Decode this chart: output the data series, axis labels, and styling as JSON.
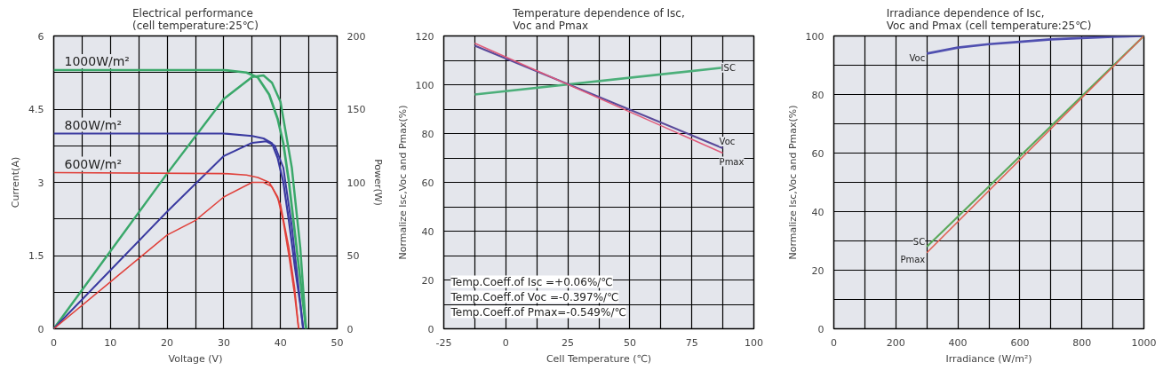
{
  "chart_data": [
    {
      "type": "line",
      "title": "Electrical performance\n(cell temperature:25℃)",
      "xlabel": "Voltage (V)",
      "ylabel": "Current(A)",
      "y2label": "Power(W)",
      "xlim": [
        0,
        50
      ],
      "xticks": [
        0,
        {
          "value": 5,
          "label": null
        },
        10,
        {
          "value": 15,
          "label": null
        },
        20,
        {
          "value": 25,
          "label": null
        },
        30,
        {
          "value": 35,
          "label": null
        },
        40,
        {
          "value": 45,
          "label": null
        },
        50
      ],
      "ylim": [
        0,
        6
      ],
      "yticks": [
        0,
        {
          "value": 0.75,
          "label": null
        },
        {
          "value": 1.5,
          "label": "1.5"
        },
        {
          "value": 2.25,
          "label": null
        },
        3,
        {
          "value": 3.75,
          "label": null
        },
        {
          "value": 4.5,
          "label": "4.5"
        },
        {
          "value": 5.25,
          "label": null
        },
        6
      ],
      "y2lim": [
        0,
        200
      ],
      "y2ticks": [
        0,
        50,
        100,
        150,
        200
      ],
      "grid": true,
      "series": [
        {
          "name": "1000W/m²",
          "color": "#3aa86a",
          "x": [
            0,
            30,
            34,
            36,
            38,
            39.5,
            40.5,
            41.5,
            42.5,
            43.5,
            44.5
          ],
          "values": [
            5.3,
            5.3,
            5.25,
            5.15,
            4.8,
            4.3,
            3.8,
            3.0,
            2.0,
            1.0,
            0
          ]
        },
        {
          "color": "#3aa86a",
          "axis": "y2",
          "x": [
            0,
            10,
            20,
            30,
            35,
            37,
            38.5,
            40,
            42,
            43.5,
            44.5
          ],
          "values": [
            0,
            53,
            106,
            157,
            172,
            173,
            168,
            155,
            110,
            55,
            0
          ]
        },
        {
          "name": "800W/m²",
          "color": "#3a3aa0",
          "x": [
            0,
            30,
            35,
            37,
            38.5,
            39.5,
            40.5,
            41.5,
            42.5,
            43.5,
            44
          ],
          "values": [
            4.0,
            4.0,
            3.95,
            3.9,
            3.8,
            3.5,
            3.0,
            2.2,
            1.3,
            0.5,
            0
          ]
        },
        {
          "color": "#3a3aa0",
          "axis": "y2",
          "x": [
            0,
            10,
            20,
            30,
            35,
            37.5,
            39,
            40.5,
            42,
            43,
            44
          ],
          "values": [
            0,
            40,
            80,
            118,
            127,
            128,
            125,
            110,
            70,
            35,
            0
          ]
        },
        {
          "name": "600W/m²",
          "color": "#e0403a",
          "x": [
            0,
            30,
            34,
            36,
            38,
            39.5,
            40.5,
            41.5,
            42.5,
            43.2
          ],
          "values": [
            3.2,
            3.18,
            3.15,
            3.1,
            3.0,
            2.7,
            2.2,
            1.5,
            0.7,
            0
          ]
        },
        {
          "color": "#e0403a",
          "axis": "y2",
          "x": [
            0,
            10,
            20,
            25,
            30,
            35,
            37,
            38.5,
            40,
            41.5,
            42.5,
            43.2
          ],
          "values": [
            0,
            32,
            64,
            74,
            90,
            100,
            100,
            97,
            85,
            55,
            28,
            0
          ]
        }
      ]
    },
    {
      "type": "line",
      "title": "Temperature dependence of Isc,\nVoc and Pmax",
      "xlabel": "Cell Temperature (℃)",
      "ylabel": "Normalize Isc,Voc and Pmax(%)",
      "xlim": [
        -25,
        100
      ],
      "xticks": [
        -25,
        {
          "value": -12.5,
          "label": null
        },
        0,
        {
          "value": 12.5,
          "label": null
        },
        25,
        {
          "value": 37.5,
          "label": null
        },
        50,
        {
          "value": 62.5,
          "label": null
        },
        75,
        {
          "value": 87.5,
          "label": null
        },
        100
      ],
      "ylim": [
        0,
        120
      ],
      "yticks": [
        0,
        {
          "value": 10,
          "label": null
        },
        20,
        {
          "value": 30,
          "label": null
        },
        40,
        {
          "value": 50,
          "label": null
        },
        60,
        {
          "value": 70,
          "label": null
        },
        80,
        {
          "value": 90,
          "label": null
        },
        100,
        {
          "value": 110,
          "label": null
        },
        120
      ],
      "grid": true,
      "annotations": [
        "Temp.Coeff.of Isc =+0.06%/℃",
        "Temp.Coeff.of Voc =-0.397%/℃",
        "Temp.Coeff.of Pmax=-0.549%/℃"
      ],
      "series": [
        {
          "name": "ISC",
          "color": "#4caf7a",
          "x": [
            -12.5,
            87.5
          ],
          "values": [
            96,
            107
          ]
        },
        {
          "name": "Voc",
          "color": "#5a4a9a",
          "x": [
            -12.5,
            87.5
          ],
          "values": [
            116,
            74
          ]
        },
        {
          "name": "Pmax",
          "color": "#e05a7a",
          "x": [
            -12.5,
            87.5
          ],
          "values": [
            117,
            72
          ]
        }
      ]
    },
    {
      "type": "line",
      "title": "Irradiance dependence of Isc,\nVoc and Pmax (cell temperature:25℃)",
      "xlabel": "Irradiance (W/m²)",
      "ylabel": "Normalize Isc,Voc and Pmax(%)",
      "xlim": [
        0,
        1000
      ],
      "xticks": [
        0,
        {
          "value": 100,
          "label": null
        },
        200,
        {
          "value": 300,
          "label": null
        },
        400,
        {
          "value": 500,
          "label": null
        },
        600,
        {
          "value": 700,
          "label": null
        },
        800,
        {
          "value": 900,
          "label": null
        },
        1000
      ],
      "ylim": [
        0,
        100
      ],
      "yticks": [
        0,
        {
          "value": 10,
          "label": null
        },
        20,
        {
          "value": 30,
          "label": null
        },
        40,
        {
          "value": 50,
          "label": null
        },
        60,
        {
          "value": 70,
          "label": null
        },
        80,
        {
          "value": 90,
          "label": null
        },
        100
      ],
      "grid": true,
      "series": [
        {
          "name": "Voc",
          "color": "#5050b0",
          "x": [
            300,
            400,
            500,
            600,
            700,
            800,
            900,
            1000
          ],
          "values": [
            94,
            96,
            97.2,
            98,
            98.8,
            99.3,
            99.7,
            100
          ]
        },
        {
          "name": "SC",
          "color": "#5aa85a",
          "x": [
            300,
            1000
          ],
          "values": [
            28,
            100
          ]
        },
        {
          "name": "Pmax",
          "color": "#e06050",
          "x": [
            300,
            1000
          ],
          "values": [
            26,
            100
          ]
        }
      ]
    }
  ]
}
